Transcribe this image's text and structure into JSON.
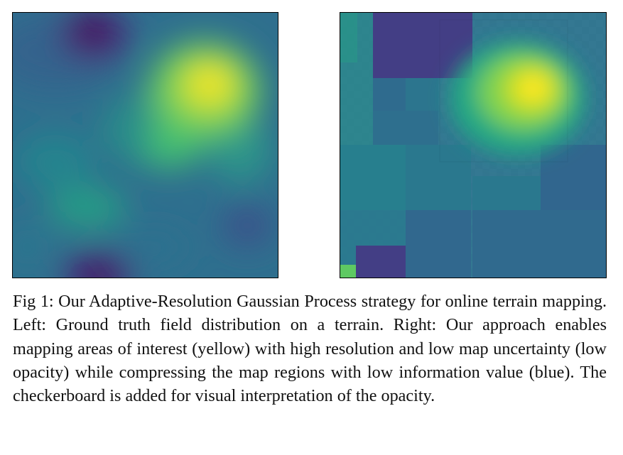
{
  "figure": {
    "caption": "Fig 1: Our Adaptive-Resolution Gaussian Process strategy for online terrain mapping. Left: Ground truth field distribution on a terrain. Right: Our approach enables mapping areas of interest (yellow) with high resolution and low map uncertainty (low opacity) while compressing the map regions with low information value (blue). The checkerboard is added for visual interpretation of the opacity.",
    "panels": [
      {
        "id": "ground-truth",
        "content": "smooth scalar field heatmap (viridis)"
      },
      {
        "id": "adaptive-gp-map",
        "content": "quadtree adaptive-resolution map over checkerboard (viridis, opacity = uncertainty)"
      }
    ],
    "colormap": {
      "name": "viridis",
      "dark": "#440154",
      "blue": "#3b528b",
      "teal": "#21918c",
      "green": "#5ec962",
      "yellow": "#fde725"
    }
  }
}
